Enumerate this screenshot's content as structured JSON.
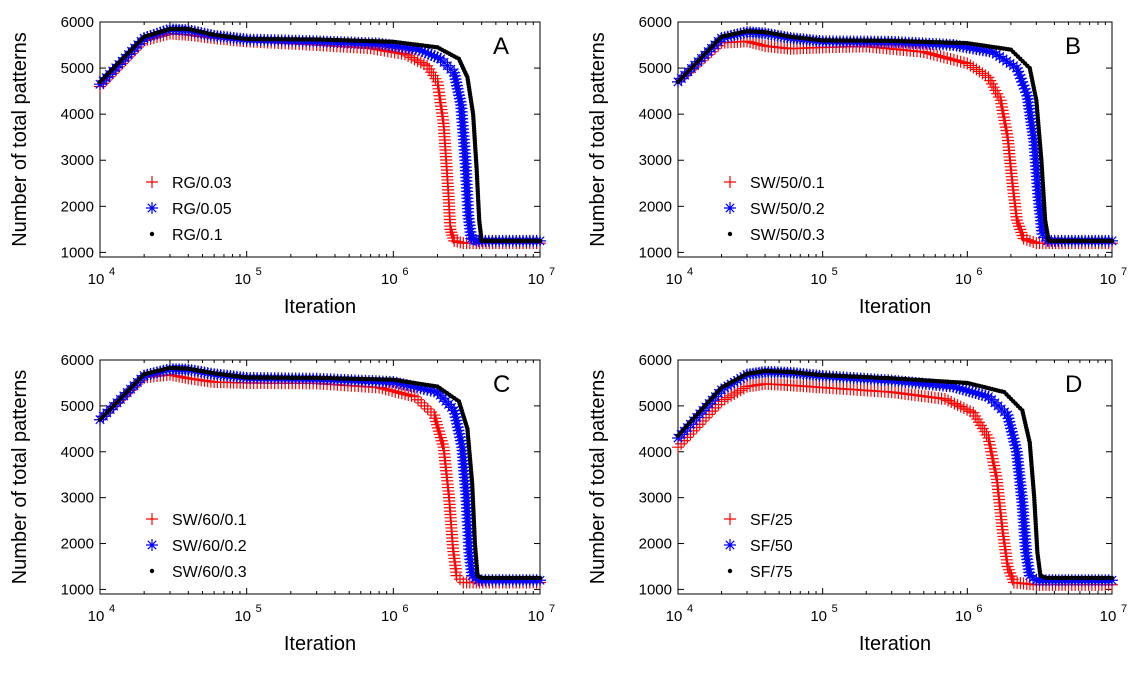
{
  "chart_data": [
    {
      "type": "scatter",
      "panel_label": "A",
      "xlabel": "Iteration",
      "ylabel": "Number of total patterns",
      "xscale": "log",
      "xlim": [
        10000,
        10000000
      ],
      "ylim": [
        900,
        6000
      ],
      "x_ticks": [
        {
          "base": "10",
          "exp": "4"
        },
        {
          "base": "10",
          "exp": "5"
        },
        {
          "base": "10",
          "exp": "6"
        },
        {
          "base": "10",
          "exp": "7"
        }
      ],
      "y_ticks": [
        "1000",
        "2000",
        "3000",
        "4000",
        "5000",
        "6000"
      ],
      "legend_position": "lower-left",
      "series": [
        {
          "name": "RG/0.03",
          "marker": "plus",
          "color": "#ff0000",
          "points": [
            [
              10000,
              4600
            ],
            [
              20000,
              5600
            ],
            [
              30000,
              5750
            ],
            [
              40000,
              5720
            ],
            [
              60000,
              5650
            ],
            [
              100000,
              5580
            ],
            [
              300000,
              5500
            ],
            [
              700000,
              5430
            ],
            [
              1200000,
              5300
            ],
            [
              1700000,
              5050
            ],
            [
              2000000,
              4700
            ],
            [
              2200000,
              3800
            ],
            [
              2350000,
              2500
            ],
            [
              2450000,
              1500
            ],
            [
              2600000,
              1250
            ],
            [
              3000000,
              1200
            ],
            [
              5000000,
              1200
            ],
            [
              10000000,
              1200
            ]
          ]
        },
        {
          "name": "RG/0.05",
          "marker": "star",
          "color": "#0000ff",
          "points": [
            [
              10000,
              4650
            ],
            [
              20000,
              5650
            ],
            [
              30000,
              5840
            ],
            [
              40000,
              5820
            ],
            [
              60000,
              5700
            ],
            [
              100000,
              5620
            ],
            [
              300000,
              5580
            ],
            [
              800000,
              5530
            ],
            [
              1500000,
              5400
            ],
            [
              2100000,
              5200
            ],
            [
              2600000,
              4900
            ],
            [
              2900000,
              4200
            ],
            [
              3100000,
              3000
            ],
            [
              3250000,
              1800
            ],
            [
              3400000,
              1300
            ],
            [
              3800000,
              1250
            ],
            [
              5000000,
              1250
            ],
            [
              10000000,
              1250
            ]
          ]
        },
        {
          "name": "RG/0.1",
          "marker": "dot",
          "color": "#000000",
          "points": [
            [
              10000,
              4700
            ],
            [
              20000,
              5680
            ],
            [
              30000,
              5850
            ],
            [
              40000,
              5850
            ],
            [
              60000,
              5720
            ],
            [
              100000,
              5630
            ],
            [
              300000,
              5620
            ],
            [
              1000000,
              5570
            ],
            [
              2000000,
              5450
            ],
            [
              2800000,
              5200
            ],
            [
              3200000,
              4800
            ],
            [
              3500000,
              4000
            ],
            [
              3700000,
              2800
            ],
            [
              3850000,
              1700
            ],
            [
              4000000,
              1250
            ],
            [
              5000000,
              1250
            ],
            [
              10000000,
              1250
            ]
          ]
        }
      ]
    },
    {
      "type": "scatter",
      "panel_label": "B",
      "xlabel": "Iteration",
      "ylabel": "Number of total patterns",
      "xscale": "log",
      "xlim": [
        10000,
        10000000
      ],
      "ylim": [
        900,
        6000
      ],
      "x_ticks": [
        {
          "base": "10",
          "exp": "4"
        },
        {
          "base": "10",
          "exp": "5"
        },
        {
          "base": "10",
          "exp": "6"
        },
        {
          "base": "10",
          "exp": "7"
        }
      ],
      "y_ticks": [
        "1000",
        "2000",
        "3000",
        "4000",
        "5000",
        "6000"
      ],
      "legend_position": "lower-left",
      "series": [
        {
          "name": "SW/50/0.1",
          "marker": "plus",
          "color": "#ff0000",
          "points": [
            [
              10000,
              4700
            ],
            [
              20000,
              5550
            ],
            [
              30000,
              5580
            ],
            [
              40000,
              5480
            ],
            [
              60000,
              5420
            ],
            [
              100000,
              5450
            ],
            [
              200000,
              5470
            ],
            [
              500000,
              5350
            ],
            [
              1000000,
              5100
            ],
            [
              1400000,
              4800
            ],
            [
              1700000,
              4300
            ],
            [
              1900000,
              3500
            ],
            [
              2050000,
              2500
            ],
            [
              2200000,
              1700
            ],
            [
              2450000,
              1300
            ],
            [
              3000000,
              1200
            ],
            [
              5000000,
              1200
            ],
            [
              10000000,
              1200
            ]
          ]
        },
        {
          "name": "SW/50/0.2",
          "marker": "star",
          "color": "#0000ff",
          "points": [
            [
              10000,
              4700
            ],
            [
              20000,
              5650
            ],
            [
              30000,
              5780
            ],
            [
              40000,
              5750
            ],
            [
              60000,
              5650
            ],
            [
              100000,
              5580
            ],
            [
              300000,
              5570
            ],
            [
              800000,
              5500
            ],
            [
              1500000,
              5350
            ],
            [
              2200000,
              5000
            ],
            [
              2600000,
              4400
            ],
            [
              2900000,
              3400
            ],
            [
              3100000,
              2200
            ],
            [
              3300000,
              1400
            ],
            [
              3600000,
              1250
            ],
            [
              5000000,
              1250
            ],
            [
              10000000,
              1250
            ]
          ]
        },
        {
          "name": "SW/50/0.3",
          "marker": "dot",
          "color": "#000000",
          "points": [
            [
              10000,
              4700
            ],
            [
              20000,
              5680
            ],
            [
              30000,
              5800
            ],
            [
              40000,
              5780
            ],
            [
              60000,
              5680
            ],
            [
              100000,
              5600
            ],
            [
              300000,
              5590
            ],
            [
              1000000,
              5540
            ],
            [
              2000000,
              5400
            ],
            [
              2700000,
              5000
            ],
            [
              3000000,
              4300
            ],
            [
              3250000,
              3000
            ],
            [
              3450000,
              1700
            ],
            [
              3650000,
              1250
            ],
            [
              5000000,
              1250
            ],
            [
              10000000,
              1250
            ]
          ]
        }
      ]
    },
    {
      "type": "scatter",
      "panel_label": "C",
      "xlabel": "Iteration",
      "ylabel": "Number of total patterns",
      "xscale": "log",
      "xlim": [
        10000,
        10000000
      ],
      "ylim": [
        900,
        6000
      ],
      "x_ticks": [
        {
          "base": "10",
          "exp": "4"
        },
        {
          "base": "10",
          "exp": "5"
        },
        {
          "base": "10",
          "exp": "6"
        },
        {
          "base": "10",
          "exp": "7"
        }
      ],
      "y_ticks": [
        "1000",
        "2000",
        "3000",
        "4000",
        "5000",
        "6000"
      ],
      "legend_position": "lower-left",
      "series": [
        {
          "name": "SW/60/0.1",
          "marker": "plus",
          "color": "#ff0000",
          "points": [
            [
              10000,
              4700
            ],
            [
              20000,
              5620
            ],
            [
              30000,
              5680
            ],
            [
              40000,
              5600
            ],
            [
              60000,
              5520
            ],
            [
              100000,
              5500
            ],
            [
              300000,
              5490
            ],
            [
              800000,
              5400
            ],
            [
              1400000,
              5200
            ],
            [
              1900000,
              4800
            ],
            [
              2200000,
              4100
            ],
            [
              2400000,
              3000
            ],
            [
              2550000,
              1900
            ],
            [
              2700000,
              1300
            ],
            [
              3000000,
              1150
            ],
            [
              5000000,
              1150
            ],
            [
              10000000,
              1150
            ]
          ]
        },
        {
          "name": "SW/60/0.2",
          "marker": "star",
          "color": "#0000ff",
          "points": [
            [
              10000,
              4700
            ],
            [
              20000,
              5660
            ],
            [
              30000,
              5800
            ],
            [
              40000,
              5790
            ],
            [
              60000,
              5690
            ],
            [
              100000,
              5610
            ],
            [
              300000,
              5590
            ],
            [
              1000000,
              5520
            ],
            [
              2000000,
              5300
            ],
            [
              2600000,
              4900
            ],
            [
              2950000,
              4100
            ],
            [
              3150000,
              3000
            ],
            [
              3300000,
              1800
            ],
            [
              3450000,
              1300
            ],
            [
              3800000,
              1200
            ],
            [
              5000000,
              1200
            ],
            [
              10000000,
              1200
            ]
          ]
        },
        {
          "name": "SW/60/0.3",
          "marker": "dot",
          "color": "#000000",
          "points": [
            [
              10000,
              4700
            ],
            [
              20000,
              5690
            ],
            [
              30000,
              5830
            ],
            [
              40000,
              5810
            ],
            [
              60000,
              5710
            ],
            [
              100000,
              5620
            ],
            [
              300000,
              5610
            ],
            [
              1000000,
              5570
            ],
            [
              2000000,
              5420
            ],
            [
              2800000,
              5100
            ],
            [
              3200000,
              4500
            ],
            [
              3450000,
              3300
            ],
            [
              3600000,
              2000
            ],
            [
              3750000,
              1300
            ],
            [
              4000000,
              1250
            ],
            [
              5000000,
              1250
            ],
            [
              10000000,
              1250
            ]
          ]
        }
      ]
    },
    {
      "type": "scatter",
      "panel_label": "D",
      "xlabel": "Iteration",
      "ylabel": "Number of total patterns",
      "xscale": "log",
      "xlim": [
        10000,
        10000000
      ],
      "ylim": [
        900,
        6000
      ],
      "x_ticks": [
        {
          "base": "10",
          "exp": "4"
        },
        {
          "base": "10",
          "exp": "5"
        },
        {
          "base": "10",
          "exp": "6"
        },
        {
          "base": "10",
          "exp": "7"
        }
      ],
      "y_ticks": [
        "1000",
        "2000",
        "3000",
        "4000",
        "5000",
        "6000"
      ],
      "legend_position": "lower-left",
      "series": [
        {
          "name": "SF/25",
          "marker": "plus",
          "color": "#ff0000",
          "points": [
            [
              10000,
              4100
            ],
            [
              20000,
              5100
            ],
            [
              30000,
              5420
            ],
            [
              40000,
              5480
            ],
            [
              60000,
              5450
            ],
            [
              100000,
              5400
            ],
            [
              300000,
              5300
            ],
            [
              700000,
              5150
            ],
            [
              1100000,
              4850
            ],
            [
              1400000,
              4300
            ],
            [
              1600000,
              3400
            ],
            [
              1750000,
              2300
            ],
            [
              1900000,
              1500
            ],
            [
              2100000,
              1150
            ],
            [
              3000000,
              1100
            ],
            [
              5000000,
              1100
            ],
            [
              10000000,
              1100
            ]
          ]
        },
        {
          "name": "SF/50",
          "marker": "star",
          "color": "#0000ff",
          "points": [
            [
              10000,
              4300
            ],
            [
              20000,
              5350
            ],
            [
              30000,
              5680
            ],
            [
              40000,
              5740
            ],
            [
              60000,
              5720
            ],
            [
              100000,
              5650
            ],
            [
              300000,
              5550
            ],
            [
              800000,
              5420
            ],
            [
              1400000,
              5200
            ],
            [
              1900000,
              4800
            ],
            [
              2200000,
              4000
            ],
            [
              2400000,
              2900
            ],
            [
              2550000,
              1800
            ],
            [
              2700000,
              1300
            ],
            [
              3000000,
              1200
            ],
            [
              5000000,
              1200
            ],
            [
              10000000,
              1200
            ]
          ]
        },
        {
          "name": "SF/75",
          "marker": "dot",
          "color": "#000000",
          "points": [
            [
              10000,
              4350
            ],
            [
              20000,
              5400
            ],
            [
              30000,
              5700
            ],
            [
              40000,
              5760
            ],
            [
              60000,
              5740
            ],
            [
              100000,
              5670
            ],
            [
              300000,
              5600
            ],
            [
              1000000,
              5500
            ],
            [
              1800000,
              5300
            ],
            [
              2400000,
              4900
            ],
            [
              2700000,
              4200
            ],
            [
              2900000,
              3000
            ],
            [
              3050000,
              1800
            ],
            [
              3200000,
              1300
            ],
            [
              3500000,
              1250
            ],
            [
              5000000,
              1250
            ],
            [
              10000000,
              1250
            ]
          ]
        }
      ]
    }
  ]
}
